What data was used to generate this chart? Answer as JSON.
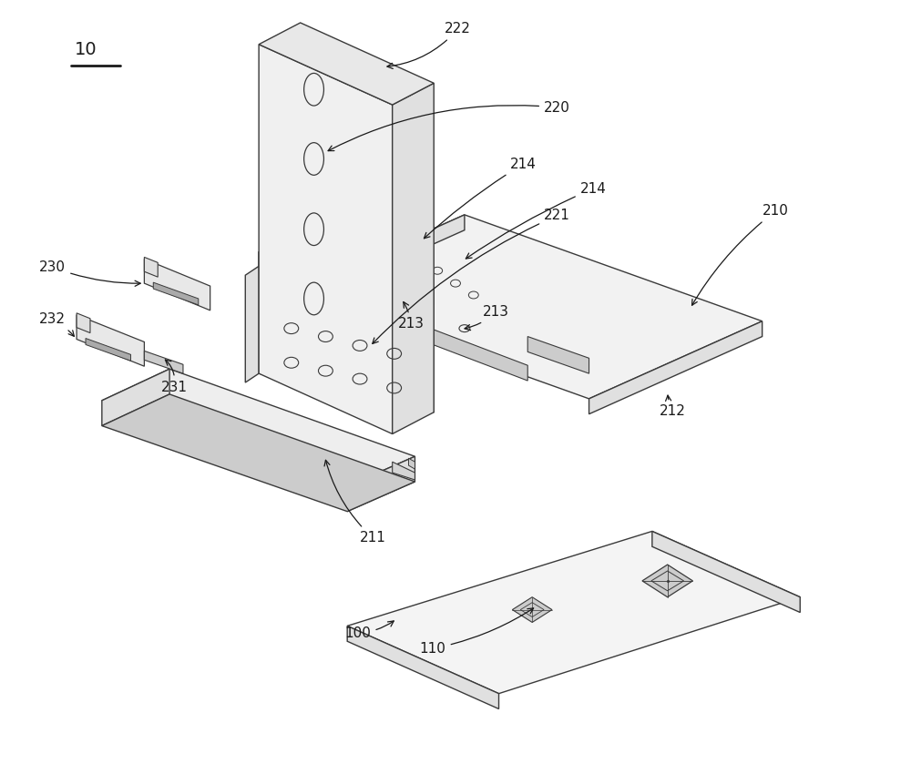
{
  "bg_color": "#ffffff",
  "lc": "#3a3a3a",
  "dc": "#1a1a1a",
  "fl": "#f4f4f4",
  "fm": "#e0e0e0",
  "fd": "#cccccc",
  "fs": 11
}
